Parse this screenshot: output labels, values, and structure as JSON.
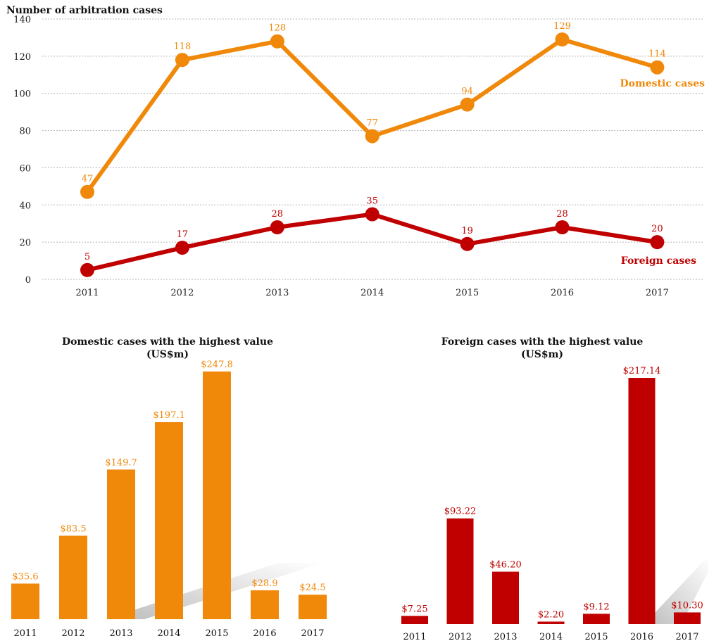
{
  "chart_data": [
    {
      "type": "line",
      "title": "Number of arbitration cases",
      "x": [
        "2011",
        "2012",
        "2013",
        "2014",
        "2015",
        "2016",
        "2017"
      ],
      "ylim": [
        0,
        140
      ],
      "yticks": [
        "0",
        "20",
        "40",
        "60",
        "80",
        "100",
        "120",
        "140"
      ],
      "grid": true,
      "series": [
        {
          "name": "Domestic cases",
          "color": "#F0880A",
          "values": [
            47,
            118,
            128,
            77,
            94,
            129,
            114
          ]
        },
        {
          "name": "Foreign cases",
          "color": "#C00000",
          "values": [
            5,
            17,
            28,
            35,
            19,
            28,
            20
          ]
        }
      ]
    },
    {
      "type": "bar",
      "title": "Domestic cases with the highest value",
      "subtitle": "(US$m)",
      "color": "#F0880A",
      "categories": [
        "2011",
        "2012",
        "2013",
        "2014",
        "2015",
        "2016",
        "2017"
      ],
      "values": [
        35.6,
        83.5,
        149.7,
        197.1,
        247.8,
        28.9,
        24.5
      ],
      "labels": [
        "$35.6",
        "$83.5",
        "$149.7",
        "$197.1",
        "$247.8",
        "$28.9",
        "$24.5"
      ]
    },
    {
      "type": "bar",
      "title": "Foreign cases with the highest value",
      "subtitle": "(US$m)",
      "color": "#C00000",
      "categories": [
        "2011",
        "2012",
        "2013",
        "2014",
        "2015",
        "2016",
        "2017"
      ],
      "values": [
        7.25,
        93.22,
        46.2,
        2.2,
        9.12,
        217.14,
        10.3
      ],
      "labels": [
        "$7.25",
        "$93.22",
        "$46.20",
        "$2.20",
        "$9.12",
        "$217.14",
        "$10.30"
      ]
    }
  ]
}
